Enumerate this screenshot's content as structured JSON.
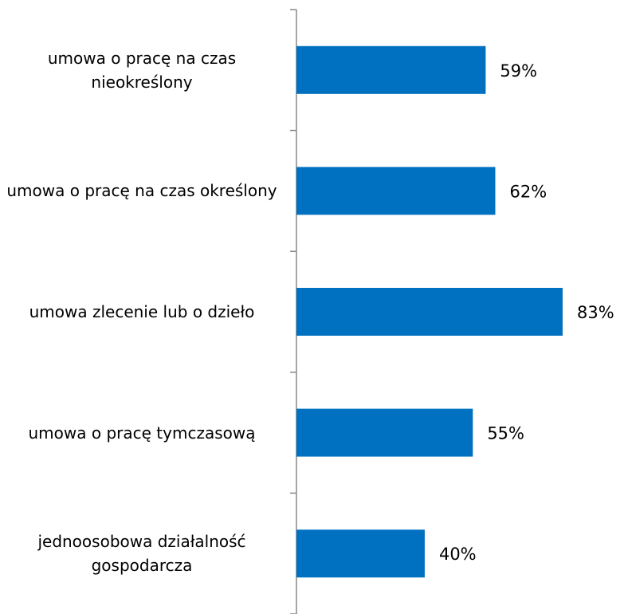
{
  "chart_data": {
    "type": "bar",
    "orientation": "horizontal",
    "categories": [
      "umowa o pracę na czas nieokreślony",
      "umowa o pracę na czas określony",
      "umowa zlecenie lub o dzieło",
      "umowa o pracę tymczasową",
      "jednoosobowa działalność gospodarcza"
    ],
    "values": [
      59,
      62,
      83,
      55,
      40
    ],
    "value_labels": [
      "59%",
      "62%",
      "83%",
      "55%",
      "40%"
    ],
    "color": "#0070c0"
  }
}
